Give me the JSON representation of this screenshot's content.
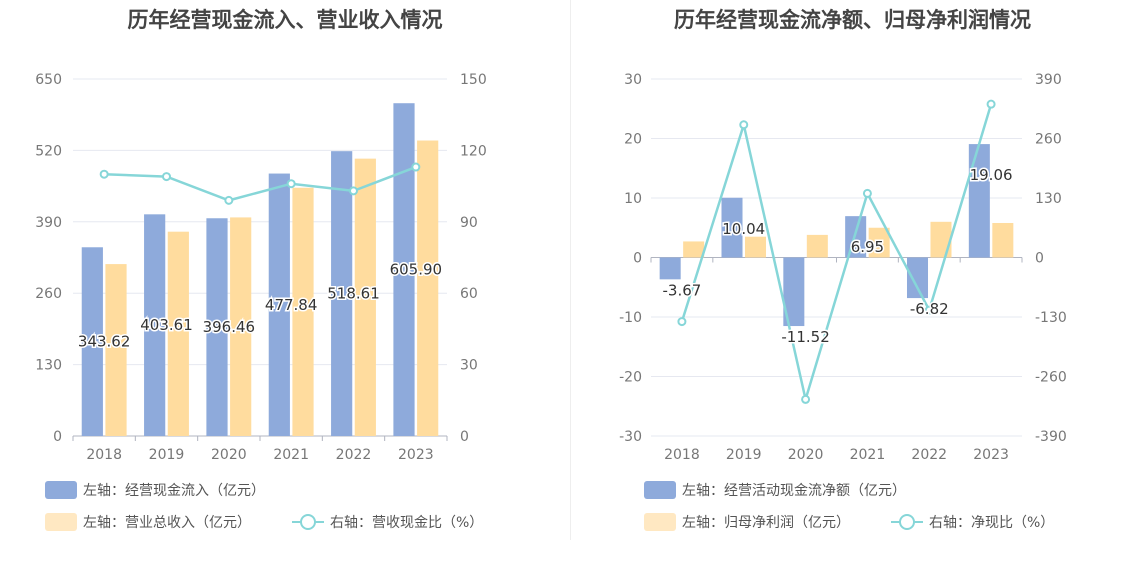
{
  "charts": [
    {
      "title": "历年经营现金流入、营业收入情况",
      "legend": [
        {
          "label": "左轴：经营现金流入（亿元）",
          "color": "#8eaadb",
          "kind": "bar"
        },
        {
          "label": "左轴：营业总收入（亿元）",
          "color": "#ffe8c2",
          "kind": "bar"
        },
        {
          "label": "右轴：营收现金比（%）",
          "color": "#86d6d8",
          "kind": "line"
        }
      ]
    },
    {
      "title": "历年经营现金流净额、归母净利润情况",
      "legend": [
        {
          "label": "左轴：经营活动现金流净额（亿元）",
          "color": "#8eaadb",
          "kind": "bar"
        },
        {
          "label": "左轴：归母净利润（亿元）",
          "color": "#ffe8c2",
          "kind": "bar"
        },
        {
          "label": "右轴：净现比（%）",
          "color": "#86d6d8",
          "kind": "line"
        }
      ]
    }
  ],
  "chart_data": [
    {
      "type": "bar",
      "title": "历年经营现金流入、营业收入情况",
      "categories": [
        "2018",
        "2019",
        "2020",
        "2021",
        "2022",
        "2023"
      ],
      "y_left": {
        "ticks": [
          "0",
          "130",
          "260",
          "390",
          "520",
          "650"
        ],
        "range": [
          0,
          650
        ]
      },
      "y_right": {
        "ticks": [
          "0",
          "30",
          "60",
          "90",
          "120",
          "150"
        ],
        "range": [
          0,
          150
        ]
      },
      "series": [
        {
          "name": "左轴：经营现金流入（亿元）",
          "axis": "left",
          "type": "bar",
          "color": "#8eaadb",
          "values": [
            343.62,
            403.61,
            396.46,
            477.84,
            518.61,
            605.9
          ],
          "labels": [
            "343.62",
            "403.61",
            "396.46",
            "477.84",
            "518.61",
            "605.90"
          ]
        },
        {
          "name": "左轴：营业总收入（亿元）",
          "axis": "left",
          "type": "bar",
          "color": "#ffdc9e",
          "values": [
            313,
            372,
            398,
            452,
            505,
            538
          ]
        },
        {
          "name": "右轴：营收现金比（%）",
          "axis": "right",
          "type": "line",
          "color": "#86d6d8",
          "values": [
            110,
            109,
            99,
            106,
            103,
            113
          ]
        }
      ],
      "grid": true,
      "legend_position": "bottom-left"
    },
    {
      "type": "bar",
      "title": "历年经营现金流净额、归母净利润情况",
      "categories": [
        "2018",
        "2019",
        "2020",
        "2021",
        "2022",
        "2023"
      ],
      "y_left": {
        "ticks": [
          "-30",
          "-20",
          "-10",
          "0",
          "10",
          "20",
          "30"
        ],
        "range": [
          -30,
          30
        ]
      },
      "y_right": {
        "ticks": [
          "-390",
          "-260",
          "-130",
          "0",
          "130",
          "260",
          "390"
        ],
        "range": [
          -390,
          390
        ]
      },
      "series": [
        {
          "name": "左轴：经营活动现金流净额（亿元）",
          "axis": "left",
          "type": "bar",
          "color": "#8eaadb",
          "values": [
            -3.67,
            10.04,
            -11.52,
            6.95,
            -6.82,
            19.06
          ],
          "labels": [
            "-3.67",
            "10.04",
            "-11.52",
            "6.95",
            "-6.82",
            "19.06"
          ]
        },
        {
          "name": "左轴：归母净利润（亿元）",
          "axis": "left",
          "type": "bar",
          "color": "#ffdc9e",
          "values": [
            2.7,
            3.5,
            3.8,
            5.0,
            6.0,
            5.8
          ]
        },
        {
          "name": "右轴：净现比（%）",
          "axis": "right",
          "type": "line",
          "color": "#86d6d8",
          "values": [
            -140,
            290,
            -310,
            140,
            -115,
            335
          ]
        }
      ],
      "grid": true,
      "legend_position": "bottom-left"
    }
  ]
}
